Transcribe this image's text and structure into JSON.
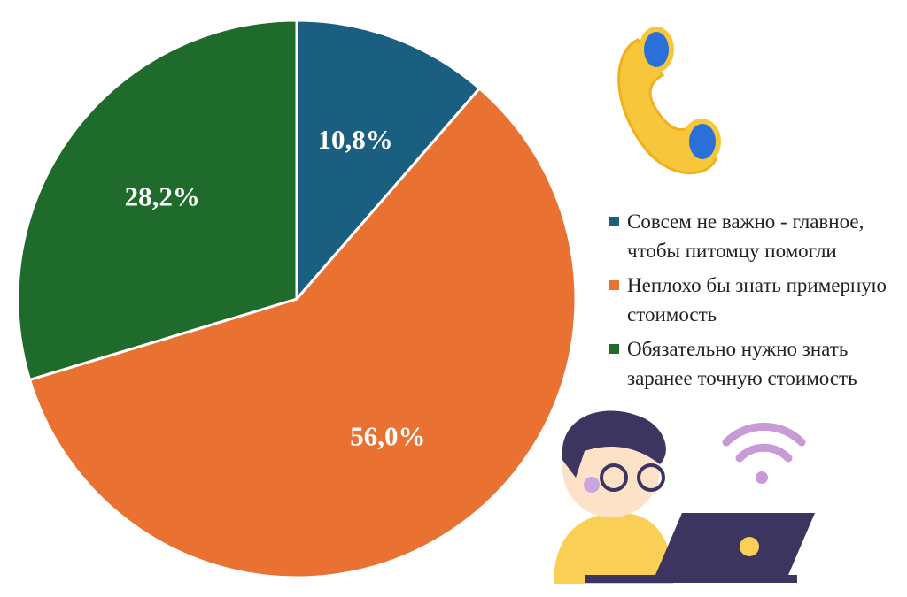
{
  "chart_data": {
    "type": "pie",
    "categories": [
      "Совсем не важно - главное, чтобы питомцу помогли",
      "Неплохо бы знать примерную стоимость",
      "Обязательно нужно знать заранее точную стоимость"
    ],
    "values": [
      10.8,
      56.0,
      28.2
    ],
    "value_labels": [
      "10,8%",
      "56,0%",
      "28,2%"
    ],
    "colors": [
      "#1a5e80",
      "#e97132",
      "#1e6b2b"
    ],
    "legend": "right"
  }
}
